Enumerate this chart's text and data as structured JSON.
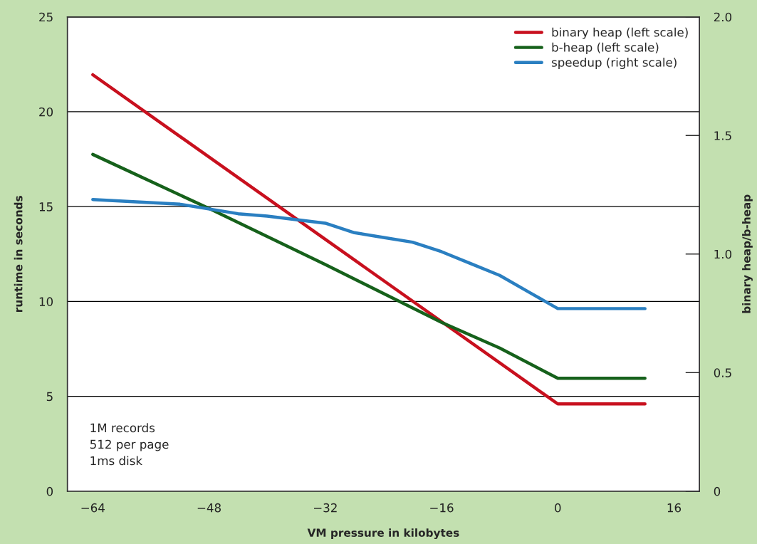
{
  "chart_data": {
    "type": "line",
    "xlabel": "VM pressure in kilobytes",
    "ylabel": "runtime in seconds",
    "y2label": "binary heap/b-heap",
    "series": [
      {
        "name": "binary heap (left scale)",
        "color": "#c8101e",
        "x": [
          -64,
          0,
          12
        ],
        "values": [
          21.95,
          4.6,
          4.6
        ]
      },
      {
        "name": "b-heap (left scale)",
        "color": "#16611b",
        "x": [
          -64,
          -48,
          -32,
          -16,
          -8,
          0,
          12
        ],
        "values": [
          17.75,
          14.9,
          11.95,
          8.9,
          7.55,
          5.95,
          5.95
        ]
      },
      {
        "name": "speedup (right scale)",
        "color": "#2a7fc1",
        "axis": "y2",
        "x": [
          -64,
          -52,
          -44,
          -40,
          -32,
          -28,
          -24,
          -20,
          -16,
          -12,
          -8,
          -4,
          0,
          12
        ],
        "values": [
          1.23,
          1.21,
          1.17,
          1.16,
          1.13,
          1.09,
          1.07,
          1.05,
          1.01,
          0.96,
          0.91,
          0.84,
          0.77,
          0.77
        ]
      }
    ],
    "xlim": [
      -67.5,
      19.5
    ],
    "xticks": [
      {
        "value": -64,
        "label": "−64"
      },
      {
        "value": -48,
        "label": "−48"
      },
      {
        "value": -32,
        "label": "−32"
      },
      {
        "value": -16,
        "label": "−16"
      },
      0,
      16
    ],
    "ylim": [
      0,
      25
    ],
    "yticks": [
      0,
      5,
      10,
      15,
      20,
      25
    ],
    "y2lim": [
      0,
      2
    ],
    "y2ticks": [
      0,
      0.5,
      {
        "value": 1,
        "label": "1.0"
      },
      1.5,
      {
        "value": 2,
        "label": "2.0"
      }
    ],
    "grid": "y",
    "legend": "top right",
    "marker": "none",
    "line_style": "solid",
    "annotations": [
      "1M records\n512 per page\n1ms disk"
    ]
  }
}
